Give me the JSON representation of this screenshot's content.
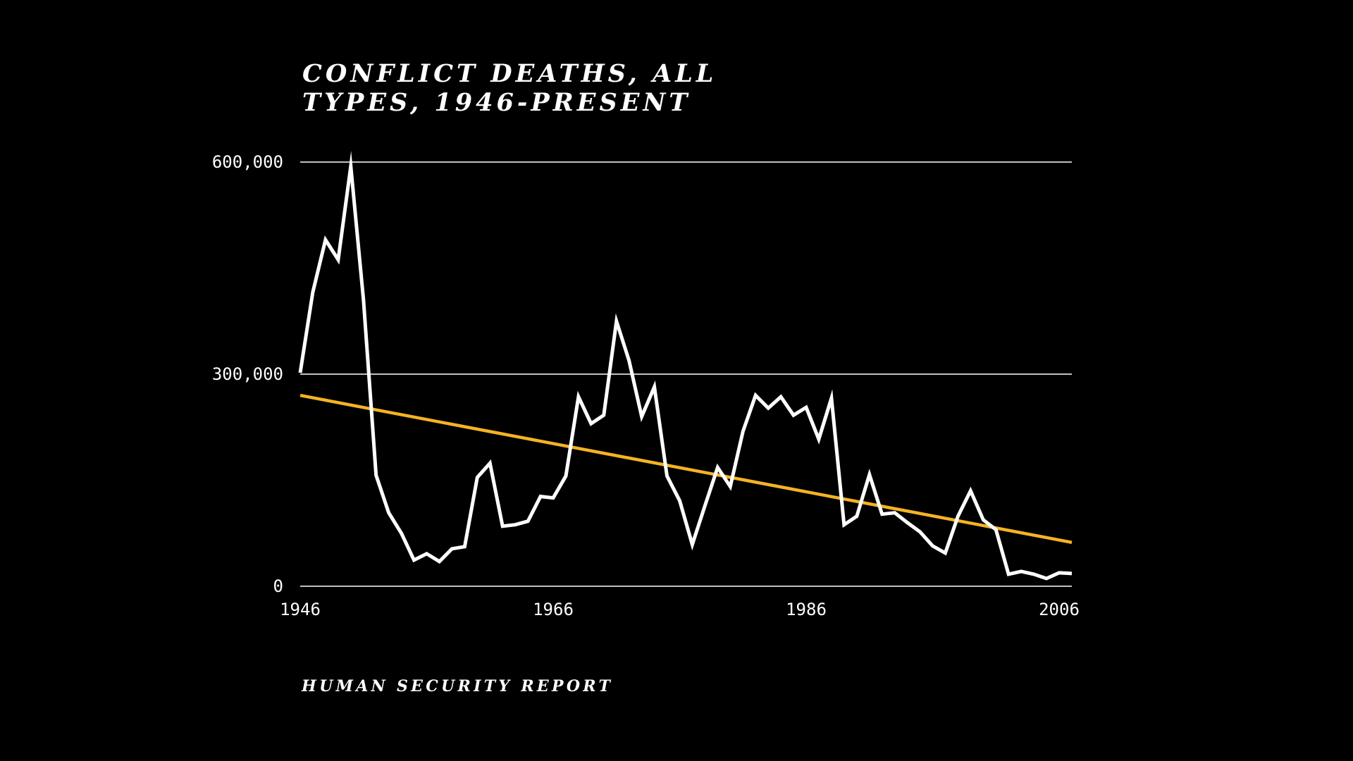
{
  "chart_data": {
    "type": "line",
    "title_lines": [
      "CONFLICT DEATHS, ALL",
      "TYPES, 1946-PRESENT"
    ],
    "title": "CONFLICT DEATHS, ALL TYPES, 1946-PRESENT",
    "source": "HUMAN SECURITY REPORT",
    "xlabel": "",
    "ylabel": "",
    "xlim": [
      1946,
      2007
    ],
    "ylim": [
      0,
      600000
    ],
    "grid": true,
    "y_ticks": [
      {
        "value": 0,
        "label": "0"
      },
      {
        "value": 300000,
        "label": "300,000"
      },
      {
        "value": 600000,
        "label": "600,000"
      }
    ],
    "x_ticks": [
      {
        "value": 1946,
        "label": "1946"
      },
      {
        "value": 1966,
        "label": "1966"
      },
      {
        "value": 1986,
        "label": "1986"
      },
      {
        "value": 2006,
        "label": "2006"
      }
    ],
    "series": [
      {
        "name": "Conflict deaths",
        "color": "#ffffff",
        "x": [
          1946,
          1947,
          1948,
          1949,
          1950,
          1951,
          1952,
          1953,
          1954,
          1955,
          1956,
          1957,
          1958,
          1959,
          1960,
          1961,
          1962,
          1963,
          1964,
          1965,
          1966,
          1967,
          1968,
          1969,
          1970,
          1971,
          1972,
          1973,
          1974,
          1975,
          1976,
          1977,
          1978,
          1979,
          1980,
          1981,
          1982,
          1983,
          1984,
          1985,
          1986,
          1987,
          1988,
          1989,
          1990,
          1991,
          1992,
          1993,
          1994,
          1995,
          1996,
          1997,
          1998,
          1999,
          2000,
          2001,
          2002,
          2003,
          2004,
          2005,
          2006,
          2007
        ],
        "values": [
          302000,
          416000,
          490000,
          462000,
          594000,
          405000,
          157000,
          104000,
          75000,
          37000,
          46000,
          35000,
          53000,
          56000,
          154000,
          174000,
          85000,
          87000,
          92000,
          127000,
          125000,
          156000,
          268000,
          230000,
          242000,
          375000,
          319000,
          240000,
          282000,
          156000,
          121000,
          59000,
          114000,
          168000,
          141000,
          219000,
          270000,
          252000,
          268000,
          242000,
          253000,
          208000,
          266000,
          87000,
          99000,
          158000,
          102000,
          104000,
          90000,
          77000,
          57000,
          47000,
          99000,
          135000,
          94000,
          80000,
          17000,
          21000,
          17000,
          11000,
          19000,
          18000
        ]
      },
      {
        "name": "Trend",
        "color": "#f5b323",
        "x": [
          1946,
          2007
        ],
        "values": [
          270000,
          62000
        ]
      }
    ]
  }
}
